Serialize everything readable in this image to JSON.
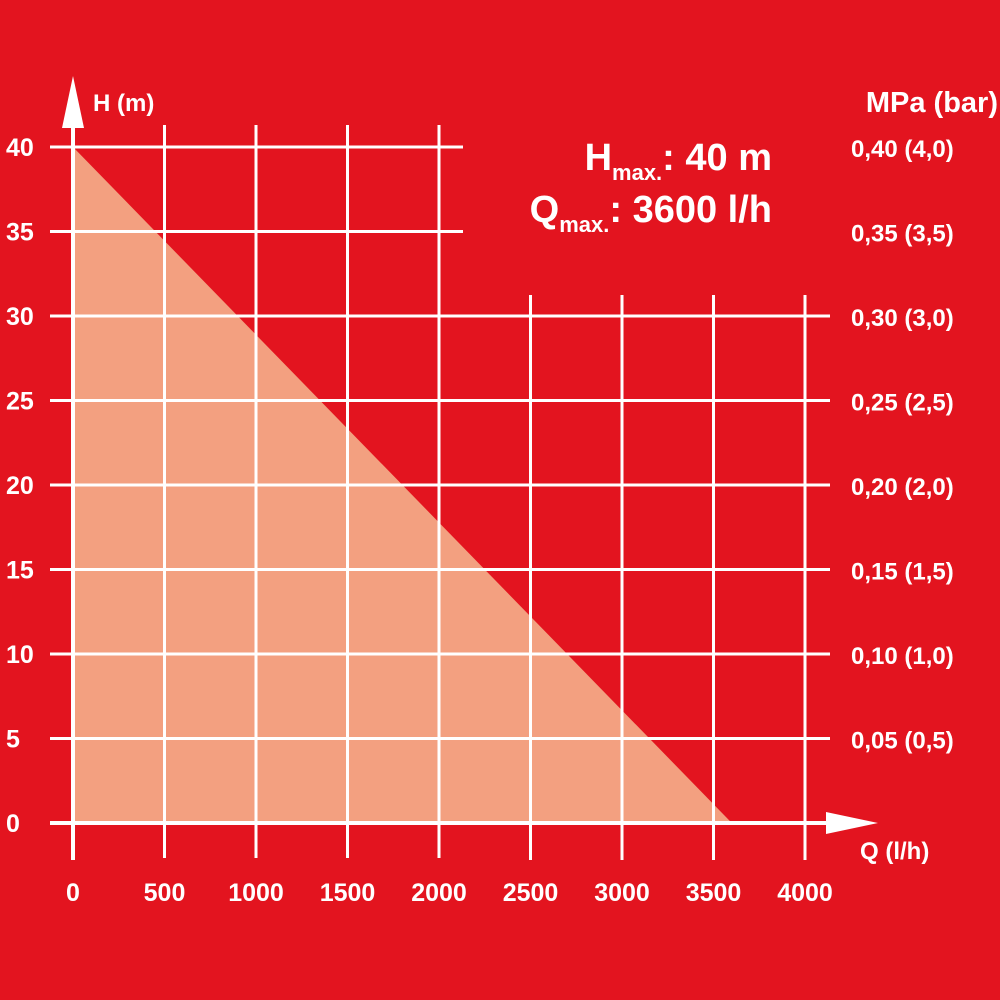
{
  "chart_data": {
    "type": "area",
    "x_axis": {
      "label": "Q (l/h)",
      "ticks": [
        0,
        500,
        1000,
        1500,
        2000,
        2500,
        3000,
        3500,
        4000
      ],
      "range": [
        0,
        4000
      ]
    },
    "y_axis": {
      "label": "H (m)",
      "ticks": [
        0,
        5,
        10,
        15,
        20,
        25,
        30,
        35,
        40
      ],
      "range": [
        0,
        40
      ]
    },
    "secondary_y_axis": {
      "label": "MPa (bar)",
      "ticks": [
        {
          "h": 5,
          "label": "0,05 (0,5)"
        },
        {
          "h": 10,
          "label": "0,10 (1,0)"
        },
        {
          "h": 15,
          "label": "0,15 (1,5)"
        },
        {
          "h": 20,
          "label": "0,20 (2,0)"
        },
        {
          "h": 25,
          "label": "0,25 (2,5)"
        },
        {
          "h": 30,
          "label": "0,30 (3,0)"
        },
        {
          "h": 35,
          "label": "0,35 (3,5)"
        },
        {
          "h": 40,
          "label": "0,40 (4,0)"
        }
      ]
    },
    "series": [
      {
        "x": [
          0,
          3600
        ],
        "y": [
          40,
          0
        ]
      }
    ],
    "annotations": {
      "h_max": {
        "symbol": "H",
        "sub": "max.",
        "value": ": 40 m"
      },
      "q_max": {
        "symbol": "Q",
        "sub": "max.",
        "value": ": 3600 l/h"
      }
    },
    "grid": true,
    "colors": {
      "background": "#e3141f",
      "fill": "#f3a080",
      "grid": "#ffffff"
    }
  }
}
